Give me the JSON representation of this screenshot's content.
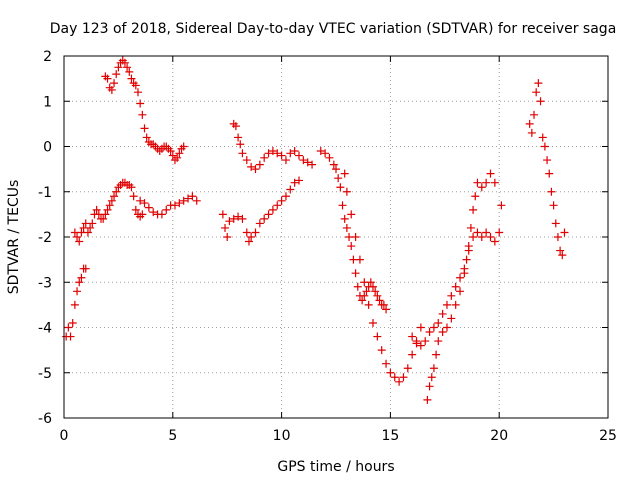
{
  "chart_data": {
    "type": "scatter",
    "title": "Day 123 of 2018, Sidereal Day-to-day VTEC variation (SDTVAR) for receiver saga",
    "xlabel": "GPS time / hours",
    "ylabel": "SDTVAR / TECUs",
    "xlim": [
      0,
      25
    ],
    "ylim": [
      -6,
      2
    ],
    "xticks": [
      "0",
      "5",
      "10",
      "15",
      "20",
      "25"
    ],
    "yticks": [
      "-6",
      "-5",
      "-4",
      "-3",
      "-2",
      "-1",
      "0",
      "1",
      "2"
    ],
    "grid": true,
    "marker": "plus",
    "color": "#e00000",
    "series": [
      {
        "points": [
          [
            0.1,
            -4.2
          ],
          [
            0.2,
            -4.0
          ],
          [
            0.3,
            -4.2
          ],
          [
            0.4,
            -3.9
          ],
          [
            0.5,
            -3.5
          ],
          [
            0.6,
            -3.2
          ],
          [
            0.7,
            -3.0
          ],
          [
            0.8,
            -2.9
          ],
          [
            0.9,
            -2.7
          ],
          [
            1.0,
            -2.7
          ],
          [
            0.5,
            -1.9
          ],
          [
            0.6,
            -2.0
          ],
          [
            0.7,
            -2.1
          ],
          [
            0.8,
            -1.9
          ],
          [
            0.9,
            -1.8
          ],
          [
            1.0,
            -1.7
          ],
          [
            1.1,
            -1.9
          ],
          [
            1.2,
            -1.8
          ],
          [
            1.3,
            -1.7
          ],
          [
            1.4,
            -1.5
          ],
          [
            1.5,
            -1.4
          ],
          [
            1.6,
            -1.5
          ],
          [
            1.7,
            -1.6
          ],
          [
            1.8,
            -1.6
          ],
          [
            1.9,
            -1.5
          ],
          [
            2.0,
            -1.4
          ],
          [
            2.1,
            -1.3
          ],
          [
            2.2,
            -1.2
          ],
          [
            2.3,
            -1.1
          ],
          [
            2.4,
            -1.0
          ],
          [
            2.5,
            -0.9
          ],
          [
            2.6,
            -0.85
          ],
          [
            2.7,
            -0.8
          ],
          [
            2.8,
            -0.8
          ],
          [
            2.9,
            -0.85
          ],
          [
            3.0,
            -0.85
          ],
          [
            3.1,
            -0.9
          ],
          [
            3.2,
            -1.1
          ],
          [
            3.3,
            -1.4
          ],
          [
            3.4,
            -1.5
          ],
          [
            3.5,
            -1.55
          ],
          [
            3.6,
            -1.5
          ],
          [
            3.5,
            -1.2
          ],
          [
            3.7,
            -1.25
          ],
          [
            3.9,
            -1.35
          ],
          [
            4.1,
            -1.45
          ],
          [
            4.3,
            -1.5
          ],
          [
            4.5,
            -1.5
          ],
          [
            4.7,
            -1.4
          ],
          [
            4.9,
            -1.3
          ],
          [
            5.1,
            -1.3
          ],
          [
            5.3,
            -1.25
          ],
          [
            5.5,
            -1.2
          ],
          [
            5.7,
            -1.15
          ],
          [
            5.9,
            -1.1
          ],
          [
            6.1,
            -1.2
          ],
          [
            1.9,
            1.55
          ],
          [
            2.0,
            1.5
          ],
          [
            2.1,
            1.3
          ],
          [
            2.2,
            1.25
          ],
          [
            2.3,
            1.4
          ],
          [
            2.4,
            1.6
          ],
          [
            2.5,
            1.75
          ],
          [
            2.6,
            1.85
          ],
          [
            2.7,
            1.9
          ],
          [
            2.8,
            1.85
          ],
          [
            2.9,
            1.75
          ],
          [
            3.0,
            1.65
          ],
          [
            3.1,
            1.5
          ],
          [
            3.2,
            1.4
          ],
          [
            3.3,
            1.35
          ],
          [
            3.4,
            1.2
          ],
          [
            3.5,
            0.95
          ],
          [
            3.6,
            0.7
          ],
          [
            3.7,
            0.4
          ],
          [
            3.8,
            0.2
          ],
          [
            3.9,
            0.1
          ],
          [
            4.0,
            0.05
          ],
          [
            4.1,
            0.05
          ],
          [
            4.2,
            0.0
          ],
          [
            4.3,
            -0.05
          ],
          [
            4.4,
            -0.1
          ],
          [
            4.5,
            -0.05
          ],
          [
            4.6,
            0.0
          ],
          [
            4.7,
            0.0
          ],
          [
            4.8,
            -0.05
          ],
          [
            4.9,
            -0.1
          ],
          [
            5.0,
            -0.2
          ],
          [
            5.1,
            -0.3
          ],
          [
            5.2,
            -0.25
          ],
          [
            5.3,
            -0.15
          ],
          [
            5.4,
            -0.05
          ],
          [
            5.5,
            0.0
          ],
          [
            7.3,
            -1.5
          ],
          [
            7.4,
            -1.8
          ],
          [
            7.5,
            -2.0
          ],
          [
            7.6,
            -1.65
          ],
          [
            7.8,
            -1.6
          ],
          [
            8.0,
            -1.55
          ],
          [
            8.2,
            -1.6
          ],
          [
            8.4,
            -1.9
          ],
          [
            8.5,
            -2.1
          ],
          [
            8.6,
            -2.0
          ],
          [
            8.8,
            -1.9
          ],
          [
            9.0,
            -1.7
          ],
          [
            9.2,
            -1.6
          ],
          [
            9.4,
            -1.5
          ],
          [
            9.6,
            -1.4
          ],
          [
            9.8,
            -1.3
          ],
          [
            10.0,
            -1.2
          ],
          [
            10.2,
            -1.1
          ],
          [
            10.4,
            -0.95
          ],
          [
            10.6,
            -0.8
          ],
          [
            10.8,
            -0.75
          ],
          [
            7.8,
            0.5
          ],
          [
            7.9,
            0.45
          ],
          [
            8.0,
            0.2
          ],
          [
            8.1,
            0.05
          ],
          [
            8.2,
            -0.15
          ],
          [
            8.4,
            -0.3
          ],
          [
            8.6,
            -0.45
          ],
          [
            8.8,
            -0.5
          ],
          [
            9.0,
            -0.4
          ],
          [
            9.2,
            -0.25
          ],
          [
            9.4,
            -0.15
          ],
          [
            9.6,
            -0.1
          ],
          [
            9.8,
            -0.15
          ],
          [
            10.0,
            -0.2
          ],
          [
            10.2,
            -0.3
          ],
          [
            10.4,
            -0.15
          ],
          [
            10.6,
            -0.1
          ],
          [
            10.8,
            -0.2
          ],
          [
            11.0,
            -0.3
          ],
          [
            11.2,
            -0.35
          ],
          [
            11.4,
            -0.4
          ],
          [
            11.8,
            -0.1
          ],
          [
            12.0,
            -0.15
          ],
          [
            12.2,
            -0.25
          ],
          [
            12.4,
            -0.4
          ],
          [
            12.5,
            -0.5
          ],
          [
            12.6,
            -0.7
          ],
          [
            12.7,
            -0.9
          ],
          [
            12.8,
            -1.3
          ],
          [
            12.9,
            -1.6
          ],
          [
            13.0,
            -1.8
          ],
          [
            13.1,
            -2.0
          ],
          [
            13.2,
            -2.2
          ],
          [
            13.3,
            -2.5
          ],
          [
            13.4,
            -2.8
          ],
          [
            13.5,
            -3.1
          ],
          [
            13.6,
            -3.3
          ],
          [
            13.7,
            -3.4
          ],
          [
            13.8,
            -3.3
          ],
          [
            13.9,
            -3.2
          ],
          [
            14.0,
            -3.1
          ],
          [
            14.1,
            -3.0
          ],
          [
            14.2,
            -3.1
          ],
          [
            14.3,
            -3.2
          ],
          [
            14.4,
            -3.3
          ],
          [
            14.5,
            -3.4
          ],
          [
            14.6,
            -3.5
          ],
          [
            14.7,
            -3.5
          ],
          [
            14.8,
            -3.6
          ],
          [
            12.9,
            -0.6
          ],
          [
            13.0,
            -1.0
          ],
          [
            13.2,
            -1.5
          ],
          [
            13.4,
            -2.0
          ],
          [
            13.6,
            -2.5
          ],
          [
            13.8,
            -3.0
          ],
          [
            14.0,
            -3.5
          ],
          [
            14.2,
            -3.9
          ],
          [
            14.4,
            -4.2
          ],
          [
            14.6,
            -4.5
          ],
          [
            14.8,
            -4.8
          ],
          [
            15.0,
            -5.0
          ],
          [
            15.2,
            -5.1
          ],
          [
            15.4,
            -5.2
          ],
          [
            15.6,
            -5.1
          ],
          [
            15.8,
            -4.9
          ],
          [
            16.0,
            -4.6
          ],
          [
            16.2,
            -4.3
          ],
          [
            16.4,
            -4.0
          ],
          [
            16.0,
            -4.2
          ],
          [
            16.2,
            -4.35
          ],
          [
            16.4,
            -4.4
          ],
          [
            16.6,
            -4.3
          ],
          [
            16.8,
            -4.1
          ],
          [
            17.0,
            -4.0
          ],
          [
            17.2,
            -3.9
          ],
          [
            17.4,
            -3.7
          ],
          [
            17.6,
            -3.5
          ],
          [
            17.8,
            -3.3
          ],
          [
            18.0,
            -3.1
          ],
          [
            18.2,
            -2.9
          ],
          [
            18.4,
            -2.7
          ],
          [
            18.6,
            -2.3
          ],
          [
            18.8,
            -2.0
          ],
          [
            19.0,
            -1.9
          ],
          [
            19.2,
            -2.0
          ],
          [
            19.4,
            -1.9
          ],
          [
            19.6,
            -2.0
          ],
          [
            19.8,
            -2.1
          ],
          [
            20.0,
            -1.9
          ],
          [
            20.1,
            -1.3
          ],
          [
            16.7,
            -5.6
          ],
          [
            16.8,
            -5.3
          ],
          [
            16.9,
            -5.1
          ],
          [
            17.0,
            -4.9
          ],
          [
            17.1,
            -4.6
          ],
          [
            17.2,
            -4.3
          ],
          [
            17.4,
            -4.1
          ],
          [
            17.6,
            -4.0
          ],
          [
            17.8,
            -3.8
          ],
          [
            18.0,
            -3.5
          ],
          [
            18.2,
            -3.2
          ],
          [
            18.4,
            -2.8
          ],
          [
            18.5,
            -2.5
          ],
          [
            18.6,
            -2.2
          ],
          [
            18.7,
            -1.8
          ],
          [
            18.8,
            -1.4
          ],
          [
            18.9,
            -1.1
          ],
          [
            19.0,
            -0.8
          ],
          [
            19.2,
            -0.9
          ],
          [
            19.4,
            -0.8
          ],
          [
            19.6,
            -0.6
          ],
          [
            19.8,
            -0.8
          ],
          [
            21.4,
            0.5
          ],
          [
            21.5,
            0.3
          ],
          [
            21.6,
            0.7
          ],
          [
            21.7,
            1.2
          ],
          [
            21.8,
            1.4
          ],
          [
            21.9,
            1.0
          ],
          [
            22.0,
            0.2
          ],
          [
            22.1,
            0.0
          ],
          [
            22.2,
            -0.3
          ],
          [
            22.3,
            -0.6
          ],
          [
            22.4,
            -1.0
          ],
          [
            22.5,
            -1.3
          ],
          [
            22.6,
            -1.7
          ],
          [
            22.7,
            -2.0
          ],
          [
            22.8,
            -2.3
          ],
          [
            22.9,
            -2.4
          ],
          [
            23.0,
            -1.9
          ]
        ]
      }
    ]
  }
}
